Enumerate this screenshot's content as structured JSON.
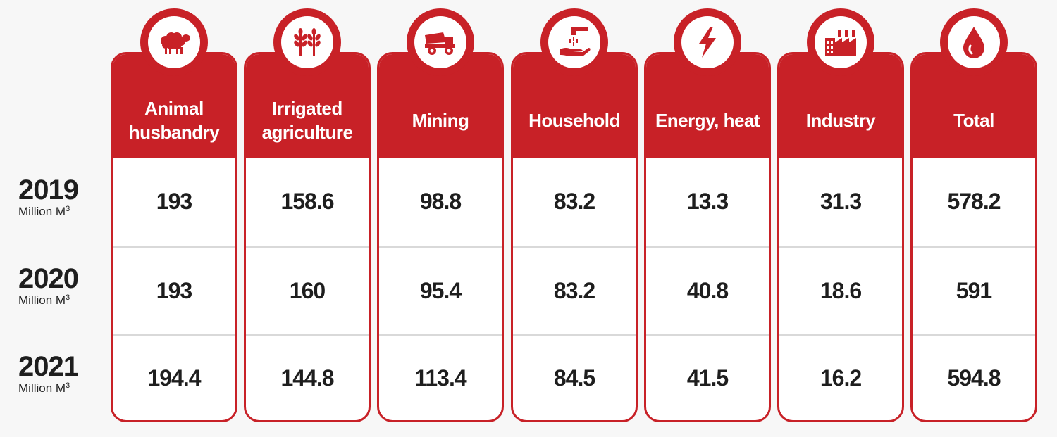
{
  "chart_data": {
    "type": "table",
    "unit": "Million M³",
    "columns": [
      {
        "label": "Animal husbandry",
        "label_lines": [
          "Animal",
          "husbandry"
        ],
        "icon": "sheep-icon",
        "values": [
          "193",
          "193",
          "194.4"
        ]
      },
      {
        "label": "Irrigated agriculture",
        "label_lines": [
          "Irrigated",
          "agriculture"
        ],
        "icon": "wheat-icon",
        "values": [
          "158.6",
          "160",
          "144.8"
        ]
      },
      {
        "label": "Mining",
        "label_lines": [
          "Mining"
        ],
        "icon": "dump-truck-icon",
        "values": [
          "98.8",
          "95.4",
          "113.4"
        ]
      },
      {
        "label": "Household",
        "label_lines": [
          "Household"
        ],
        "icon": "tap-hand-icon",
        "values": [
          "83.2",
          "83.2",
          "84.5"
        ]
      },
      {
        "label": "Energy, heat",
        "label_lines": [
          "Energy, heat"
        ],
        "icon": "lightning-icon",
        "values": [
          "13.3",
          "40.8",
          "41.5"
        ]
      },
      {
        "label": "Industry",
        "label_lines": [
          "Industry"
        ],
        "icon": "factory-icon",
        "values": [
          "31.3",
          "18.6",
          "16.2"
        ]
      },
      {
        "label": "Total",
        "label_lines": [
          "Total"
        ],
        "icon": "water-drop-icon",
        "values": [
          "578.2",
          "591",
          "594.8"
        ]
      }
    ],
    "rows": [
      {
        "year": "2019",
        "unit": "Million M",
        "unit_sup": "3"
      },
      {
        "year": "2020",
        "unit": "Million M",
        "unit_sup": "3"
      },
      {
        "year": "2021",
        "unit": "Million M",
        "unit_sup": "3"
      }
    ],
    "colors": {
      "accent": "#c82127",
      "text": "#1e1e1e",
      "divider": "#d9d9d9"
    }
  }
}
